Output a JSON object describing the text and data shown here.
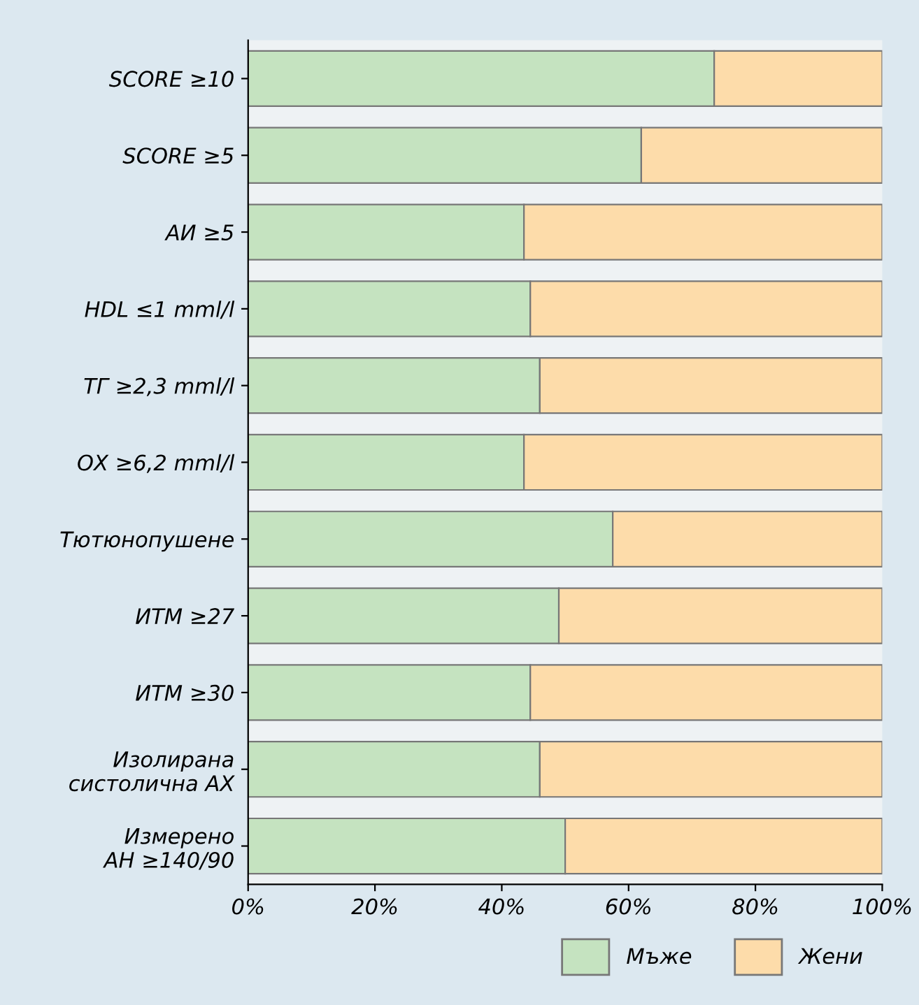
{
  "chart_data": {
    "type": "bar",
    "orientation": "horizontal",
    "stacked": true,
    "categories": [
      "SCORE ≥10",
      "SCORE ≥5",
      "АИ ≥5",
      "HDL ≤1 mml/l",
      "ТГ ≥2,3 mml/l",
      "ОХ ≥6,2 mml/l",
      "Тютюнопушене",
      "ИТМ ≥27",
      "ИТМ ≥30",
      "Изолирана\nсистолична АХ",
      "Измерено\nАН ≥140/90"
    ],
    "series": [
      {
        "name": "Мъже",
        "color": "#c5e3c0",
        "values": [
          73.5,
          62,
          43.5,
          44.5,
          46,
          43.5,
          57.5,
          49,
          44.5,
          46,
          50
        ]
      },
      {
        "name": "Жени",
        "color": "#fddcaa",
        "values": [
          26.5,
          38,
          56.5,
          55.5,
          54,
          56.5,
          42.5,
          51,
          55.5,
          54,
          50
        ]
      }
    ],
    "xlim": [
      0,
      100
    ],
    "xticks": [
      {
        "value": 0,
        "label": "0%"
      },
      {
        "value": 20,
        "label": "20%"
      },
      {
        "value": 40,
        "label": "40%"
      },
      {
        "value": 60,
        "label": "60%"
      },
      {
        "value": 80,
        "label": "80%"
      },
      {
        "value": 100,
        "label": "100%"
      }
    ],
    "grid": false,
    "legend": "bottom right"
  }
}
